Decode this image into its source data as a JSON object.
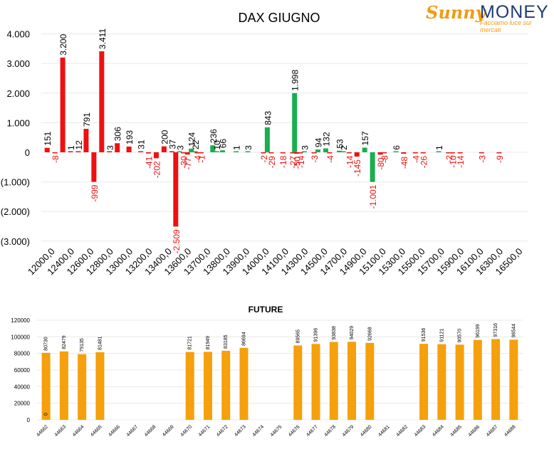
{
  "brand": {
    "name_part1": "Sunny",
    "name_part2": "MONEY",
    "tagline": "Facciamo luce sui mercati"
  },
  "colors": {
    "positive_red": "#ee1111",
    "negative_red": "#ee1111",
    "positive_green": "#1aae4f",
    "future_orange": "#f5a00c",
    "grid": "#e8e8e8",
    "text": "#000000"
  },
  "chart_data": [
    {
      "type": "bar",
      "title": "DAX GIUGNO",
      "ylim": [
        -3000,
        4000
      ],
      "y_ticks": [
        "(3.000)",
        "(2.000)",
        "(1.000)",
        "0",
        "1.000",
        "2.000",
        "3.000",
        "4.000"
      ],
      "tick_labels": [
        "12000,0",
        "12400,0",
        "12600,0",
        "12800,0",
        "13000,0",
        "13200,0",
        "13400,0",
        "13600,0",
        "13700,0",
        "13800,0",
        "13900,0",
        "14000,0",
        "14100,0",
        "14300,0",
        "14500,0",
        "14700,0",
        "14900,0",
        "15100,0",
        "15300,0",
        "15500,0",
        "15700,0",
        "15900,0",
        "16100,0",
        "16300,0",
        "16500,0"
      ],
      "grid": true,
      "series": [
        {
          "color": "red",
          "values": [
            {
              "pos": 0.3,
              "v": 151,
              "label": "151"
            },
            {
              "pos": 0.7,
              "v": -8,
              "label": "-8"
            },
            {
              "pos": 1.1,
              "v": 3200,
              "label": "3.200"
            },
            {
              "pos": 1.5,
              "v": 1,
              "label": "1"
            },
            {
              "pos": 1.9,
              "v": 12,
              "label": "12"
            },
            {
              "pos": 2.3,
              "v": 791,
              "label": "791"
            },
            {
              "pos": 2.7,
              "v": -999,
              "label": "-999"
            },
            {
              "pos": 3.1,
              "v": 3411,
              "label": "3.411"
            },
            {
              "pos": 3.5,
              "v": 3,
              "label": "3"
            },
            {
              "pos": 3.9,
              "v": 306,
              "label": "306"
            },
            {
              "pos": 4.5,
              "v": 193,
              "label": "193"
            },
            {
              "pos": 5.1,
              "v": 31,
              "label": "31"
            },
            {
              "pos": 5.5,
              "v": -41,
              "label": "-41"
            },
            {
              "pos": 5.9,
              "v": -202,
              "label": "-202"
            },
            {
              "pos": 6.3,
              "v": 200,
              "label": "200"
            },
            {
              "pos": 6.7,
              "v": 37,
              "label": "37"
            },
            {
              "pos": 6.9,
              "v": -2509,
              "label": "-2.509"
            },
            {
              "pos": 7.3,
              "v": -30,
              "label": "-30"
            },
            {
              "pos": 7.5,
              "v": -77,
              "label": "-77"
            },
            {
              "pos": 8.0,
              "v": -4,
              "label": "-4"
            },
            {
              "pos": 8.2,
              "v": -1,
              "label": "-1"
            },
            {
              "pos": 11.4,
              "v": -2,
              "label": "-2"
            },
            {
              "pos": 11.8,
              "v": -29,
              "label": "-29"
            },
            {
              "pos": 12.4,
              "v": -18,
              "label": "-18"
            },
            {
              "pos": 12.9,
              "v": -27,
              "label": "-27"
            },
            {
              "pos": 13.1,
              "v": -50,
              "label": "-50"
            },
            {
              "pos": 13.3,
              "v": -14,
              "label": "-14"
            },
            {
              "pos": 14.0,
              "v": -3,
              "label": "-3"
            },
            {
              "pos": 14.8,
              "v": -4,
              "label": "-4"
            },
            {
              "pos": 15.8,
              "v": -14,
              "label": "-14"
            },
            {
              "pos": 16.2,
              "v": -145,
              "label": "-145"
            },
            {
              "pos": 17.4,
              "v": -80,
              "label": "-80"
            },
            {
              "pos": 17.6,
              "v": -8,
              "label": "-8"
            },
            {
              "pos": 18.6,
              "v": -48,
              "label": "-48"
            },
            {
              "pos": 19.2,
              "v": -4,
              "label": "-4"
            },
            {
              "pos": 19.6,
              "v": -26,
              "label": "-26"
            },
            {
              "pos": 20.9,
              "v": -2,
              "label": "-2"
            },
            {
              "pos": 21.1,
              "v": -10,
              "label": "-10"
            },
            {
              "pos": 21.5,
              "v": -14,
              "label": "-14"
            },
            {
              "pos": 22.6,
              "v": -3,
              "label": "-3"
            },
            {
              "pos": 23.5,
              "v": -9,
              "label": "-9"
            }
          ]
        },
        {
          "color": "green",
          "values": [
            {
              "pos": 7.1,
              "v": 3,
              "label": "3"
            },
            {
              "pos": 7.7,
              "v": 124,
              "label": "124"
            },
            {
              "pos": 7.9,
              "v": 22,
              "label": "22"
            },
            {
              "pos": 8.8,
              "v": 236,
              "label": "236"
            },
            {
              "pos": 9.0,
              "v": 10,
              "label": "10"
            },
            {
              "pos": 9.3,
              "v": 66,
              "label": "66"
            },
            {
              "pos": 10.0,
              "v": 1,
              "label": "1"
            },
            {
              "pos": 10.6,
              "v": 3,
              "label": "3"
            },
            {
              "pos": 11.6,
              "v": 843,
              "label": "843"
            },
            {
              "pos": 13.0,
              "v": 1998,
              "label": "1.998"
            },
            {
              "pos": 13.5,
              "v": 3,
              "label": "3"
            },
            {
              "pos": 14.2,
              "v": 94,
              "label": "94"
            },
            {
              "pos": 14.6,
              "v": 132,
              "label": "132"
            },
            {
              "pos": 15.3,
              "v": 53,
              "label": "53"
            },
            {
              "pos": 15.5,
              "v": 2,
              "label": "2"
            },
            {
              "pos": 16.6,
              "v": 157,
              "label": "157"
            },
            {
              "pos": 17.0,
              "v": -1001,
              "label": "-1.001"
            },
            {
              "pos": 18.2,
              "v": 6,
              "label": "6"
            },
            {
              "pos": 20.4,
              "v": 1,
              "label": "1"
            }
          ]
        }
      ]
    },
    {
      "type": "bar",
      "title": "FUTURE",
      "ylim": [
        0,
        120000
      ],
      "y_ticks": [
        "0",
        "20000",
        "40000",
        "60000",
        "80000",
        "100000",
        "120000"
      ],
      "categories": [
        "44662",
        "44663",
        "44664",
        "44665",
        "44666",
        "44667",
        "44668",
        "44669",
        "44670",
        "44671",
        "44672",
        "44673",
        "44674",
        "44675",
        "44676",
        "44677",
        "44678",
        "44679",
        "44680",
        "44681",
        "44682",
        "44683",
        "44684",
        "44685",
        "44686",
        "44687",
        "44688"
      ],
      "values": [
        80730,
        82479,
        79135,
        81481,
        null,
        null,
        null,
        null,
        81721,
        81949,
        83185,
        86694,
        null,
        null,
        89565,
        91396,
        93838,
        94029,
        92668,
        null,
        null,
        91536,
        91121,
        90570,
        96199,
        97316,
        96544
      ],
      "value_labels": [
        "80730",
        "82479",
        "79135",
        "81481",
        "",
        "",
        "",
        "",
        "81721",
        "81949",
        "83185",
        "86694",
        "",
        "",
        "89565",
        "91396",
        "93838",
        "94029",
        "92668",
        "",
        "",
        "91536",
        "91121",
        "90570",
        "96199",
        "97316",
        "96544"
      ],
      "extra_label": "0",
      "grid": true
    }
  ]
}
